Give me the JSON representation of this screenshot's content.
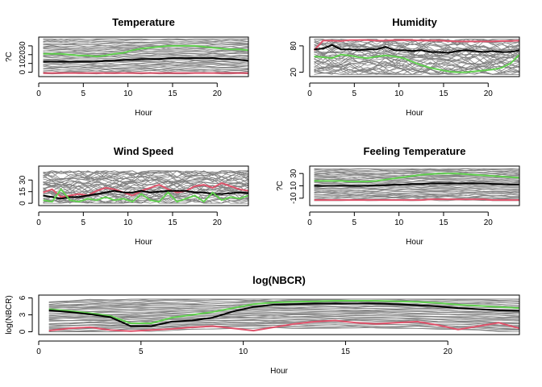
{
  "chart_data": [
    {
      "type": "line",
      "title": "Temperature",
      "xlabel": "Hour",
      "ylabel": "?C",
      "xlim": [
        0,
        23.5
      ],
      "ylim": [
        -5,
        40
      ],
      "xticks": [
        0,
        5,
        10,
        15,
        20
      ],
      "yticks": [
        0,
        10,
        20,
        30
      ],
      "grid": false,
      "background": {
        "count": 40,
        "color": "#808080",
        "low": -2,
        "high": 38
      },
      "series": [
        {
          "color": "#000000",
          "x": [
            0.5,
            1.5,
            2.5,
            3.5,
            4.5,
            5.5,
            6.5,
            7.5,
            8.5,
            9.5,
            10.5,
            11.5,
            12.5,
            13.5,
            14.5,
            15.5,
            16.5,
            17.5,
            18.5,
            19.5,
            20.5,
            21.5,
            22.5,
            23.5
          ],
          "values": [
            12,
            12,
            12,
            12,
            12,
            12,
            12,
            13,
            13,
            14,
            14,
            15,
            15,
            15,
            16,
            16,
            16,
            16,
            16,
            16,
            15,
            15,
            14,
            13
          ]
        },
        {
          "color": "#61D04F",
          "x": [
            0.5,
            1.5,
            2.5,
            3.5,
            4.5,
            5.5,
            6.5,
            7.5,
            8.5,
            9.5,
            10.5,
            11.5,
            12.5,
            13.5,
            14.5,
            15.5,
            16.5,
            17.5,
            18.5,
            19.5,
            20.5,
            21.5,
            22.5,
            23.5
          ],
          "values": [
            21,
            21,
            21,
            20,
            19,
            19,
            18,
            19,
            21,
            22,
            25,
            27,
            28,
            29,
            30,
            30,
            30,
            30,
            29,
            28,
            27,
            26,
            26,
            25
          ]
        },
        {
          "color": "#DF536B",
          "x": [
            0.5,
            1.5,
            2.5,
            3.5,
            4.5,
            5.5,
            6.5,
            7.5,
            8.5,
            9.5,
            10.5,
            11.5,
            12.5,
            13.5,
            14.5,
            15.5,
            16.5,
            17.5,
            18.5,
            19.5,
            20.5,
            21.5,
            22.5,
            23.5
          ],
          "values": [
            -1,
            -1,
            -1,
            -1,
            -1,
            -1,
            -1,
            -1,
            -1,
            -1,
            -1,
            -1,
            -1,
            -1,
            -1,
            -1,
            -1,
            -1,
            -1,
            -1,
            -1,
            -1,
            -1,
            -1
          ]
        }
      ]
    },
    {
      "type": "line",
      "title": "Humidity",
      "xlabel": "Hour",
      "ylabel": "",
      "xlim": [
        0,
        23.5
      ],
      "ylim": [
        10,
        100
      ],
      "xticks": [
        0,
        5,
        10,
        15,
        20
      ],
      "yticks": [
        20,
        80
      ],
      "grid": false,
      "background": {
        "count": 40,
        "color": "#808080",
        "low": 15,
        "high": 95
      },
      "series": [
        {
          "color": "#DF536B",
          "x": [
            0.5,
            1.5,
            2.5,
            3.5,
            4.5,
            5.5,
            6.5,
            7.5,
            8.5,
            9.5,
            10.5,
            11.5,
            12.5,
            13.5,
            14.5,
            15.5,
            16.5,
            17.5,
            18.5,
            19.5,
            20.5,
            21.5,
            22.5,
            23.5
          ],
          "values": [
            70,
            92,
            92,
            91,
            93,
            93,
            93,
            92,
            92,
            93,
            93,
            93,
            92,
            92,
            92,
            91,
            90,
            90,
            90,
            90,
            90,
            91,
            91,
            92
          ]
        },
        {
          "color": "#000000",
          "x": [
            0.5,
            1.5,
            2.5,
            3.5,
            4.5,
            5.5,
            6.5,
            7.5,
            8.5,
            9.5,
            10.5,
            11.5,
            12.5,
            13.5,
            14.5,
            15.5,
            16.5,
            17.5,
            18.5,
            19.5,
            20.5,
            21.5,
            22.5,
            23.5
          ],
          "values": [
            72,
            74,
            82,
            72,
            72,
            70,
            72,
            72,
            78,
            70,
            70,
            68,
            70,
            66,
            66,
            64,
            68,
            70,
            68,
            66,
            68,
            66,
            66,
            70
          ]
        },
        {
          "color": "#61D04F",
          "x": [
            0.5,
            1.5,
            2.5,
            3.5,
            4.5,
            5.5,
            6.5,
            7.5,
            8.5,
            9.5,
            10.5,
            11.5,
            12.5,
            13.5,
            14.5,
            15.5,
            16.5,
            17.5,
            18.5,
            19.5,
            20.5,
            21.5,
            22.5,
            23.5
          ],
          "values": [
            56,
            54,
            52,
            60,
            58,
            54,
            52,
            56,
            58,
            56,
            52,
            44,
            36,
            30,
            26,
            22,
            20,
            20,
            22,
            24,
            26,
            30,
            40,
            60
          ]
        }
      ]
    },
    {
      "type": "line",
      "title": "Wind Speed",
      "xlabel": "Hour",
      "ylabel": "",
      "xlim": [
        0,
        23.5
      ],
      "ylim": [
        -3,
        48
      ],
      "xticks": [
        0,
        5,
        10,
        15,
        20
      ],
      "yticks": [
        0,
        15,
        30
      ],
      "grid": false,
      "background": {
        "count": 40,
        "color": "#808080",
        "low": 0,
        "high": 42
      },
      "series": [
        {
          "color": "#DF536B",
          "x": [
            0.5,
            1.5,
            2.5,
            3.5,
            4.5,
            5.5,
            6.5,
            7.5,
            8.5,
            9.5,
            10.5,
            11.5,
            12.5,
            13.5,
            14.5,
            15.5,
            16.5,
            17.5,
            18.5,
            19.5,
            20.5,
            21.5,
            22.5,
            23.5
          ],
          "values": [
            14,
            18,
            8,
            10,
            12,
            10,
            16,
            20,
            18,
            14,
            10,
            16,
            20,
            24,
            18,
            14,
            16,
            22,
            24,
            20,
            26,
            22,
            18,
            16
          ]
        },
        {
          "color": "#000000",
          "x": [
            0.5,
            1.5,
            2.5,
            3.5,
            4.5,
            5.5,
            6.5,
            7.5,
            8.5,
            9.5,
            10.5,
            11.5,
            12.5,
            13.5,
            14.5,
            15.5,
            16.5,
            17.5,
            18.5,
            19.5,
            20.5,
            21.5,
            22.5,
            23.5
          ],
          "values": [
            10,
            8,
            6,
            8,
            8,
            10,
            12,
            14,
            16,
            14,
            14,
            16,
            14,
            15,
            16,
            16,
            16,
            14,
            14,
            12,
            12,
            13,
            14,
            13
          ]
        },
        {
          "color": "#61D04F",
          "x": [
            0.5,
            1.5,
            2.5,
            3.5,
            4.5,
            5.5,
            6.5,
            7.5,
            8.5,
            9.5,
            10.5,
            11.5,
            12.5,
            13.5,
            14.5,
            15.5,
            16.5,
            17.5,
            18.5,
            19.5,
            20.5,
            21.5,
            22.5,
            23.5
          ],
          "values": [
            4,
            2,
            18,
            4,
            2,
            6,
            4,
            8,
            4,
            6,
            2,
            12,
            4,
            2,
            14,
            2,
            6,
            10,
            2,
            14,
            4,
            8,
            6,
            10
          ]
        }
      ]
    },
    {
      "type": "line",
      "title": "Feeling Temperature",
      "xlabel": "Hour",
      "ylabel": "?C",
      "xlim": [
        0,
        23.5
      ],
      "ylim": [
        -22,
        42
      ],
      "xticks": [
        0,
        5,
        10,
        15,
        20
      ],
      "yticks": [
        -10,
        10,
        30
      ],
      "grid": false,
      "background": {
        "count": 40,
        "color": "#808080",
        "low": -14,
        "high": 38
      },
      "series": [
        {
          "color": "#61D04F",
          "x": [
            0.5,
            1.5,
            2.5,
            3.5,
            4.5,
            5.5,
            6.5,
            7.5,
            8.5,
            9.5,
            10.5,
            11.5,
            12.5,
            13.5,
            14.5,
            15.5,
            16.5,
            17.5,
            18.5,
            19.5,
            20.5,
            21.5,
            22.5,
            23.5
          ],
          "values": [
            18,
            18,
            18,
            18,
            17,
            17,
            17,
            18,
            20,
            22,
            24,
            26,
            28,
            29,
            30,
            30,
            30,
            29,
            28,
            27,
            26,
            25,
            24,
            23
          ]
        },
        {
          "color": "#000000",
          "x": [
            0.5,
            1.5,
            2.5,
            3.5,
            4.5,
            5.5,
            6.5,
            7.5,
            8.5,
            9.5,
            10.5,
            11.5,
            12.5,
            13.5,
            14.5,
            15.5,
            16.5,
            17.5,
            18.5,
            19.5,
            20.5,
            21.5,
            22.5,
            23.5
          ],
          "values": [
            10,
            10,
            10,
            10,
            10,
            10,
            10,
            11,
            11,
            12,
            12,
            13,
            13,
            14,
            14,
            14,
            14,
            14,
            14,
            14,
            13,
            13,
            12,
            12
          ]
        },
        {
          "color": "#DF536B",
          "x": [
            0.5,
            1.5,
            2.5,
            3.5,
            4.5,
            5.5,
            6.5,
            7.5,
            8.5,
            9.5,
            10.5,
            11.5,
            12.5,
            13.5,
            14.5,
            15.5,
            16.5,
            17.5,
            18.5,
            19.5,
            20.5,
            21.5,
            22.5,
            23.5
          ],
          "values": [
            -13,
            -13,
            -13,
            -13,
            -13,
            -13,
            -13,
            -13,
            -13,
            -13,
            -13,
            -13,
            -13,
            -12,
            -12,
            -12,
            -12,
            -12,
            -12,
            -12,
            -13,
            -13,
            -13,
            -13
          ]
        }
      ]
    },
    {
      "type": "line",
      "title": "log(NBCR)",
      "xlabel": "Hour",
      "ylabel": "log(NBCR)",
      "xlim": [
        0,
        23.5
      ],
      "ylim": [
        -0.5,
        6.5
      ],
      "xticks": [
        0,
        5,
        10,
        15,
        20
      ],
      "yticks": [
        0,
        3,
        6
      ],
      "grid": false,
      "background": {
        "count": 40,
        "color": "#808080",
        "low": 0,
        "high": 5.8
      },
      "series": [
        {
          "color": "#61D04F",
          "x": [
            0.5,
            1.5,
            2.5,
            3.5,
            4.5,
            5.5,
            6.5,
            7.5,
            8.5,
            9.5,
            10.5,
            11.5,
            12.5,
            13.5,
            14.5,
            15.5,
            16.5,
            17.5,
            18.5,
            19.5,
            20.5,
            21.5,
            22.5,
            23.5
          ],
          "values": [
            4.0,
            3.7,
            3.3,
            2.8,
            1.5,
            1.5,
            2.5,
            3.0,
            3.5,
            4.2,
            4.9,
            5.2,
            5.3,
            5.4,
            5.5,
            5.5,
            5.5,
            5.4,
            5.3,
            5.1,
            4.8,
            4.6,
            4.4,
            4.2
          ]
        },
        {
          "color": "#000000",
          "x": [
            0.5,
            1.5,
            2.5,
            3.5,
            4.5,
            5.5,
            6.5,
            7.5,
            8.5,
            9.5,
            10.5,
            11.5,
            12.5,
            13.5,
            14.5,
            15.5,
            16.5,
            17.5,
            18.5,
            19.5,
            20.5,
            21.5,
            22.5,
            23.5
          ],
          "values": [
            3.8,
            3.5,
            3.1,
            2.6,
            1.0,
            1.0,
            1.8,
            2.0,
            2.5,
            3.6,
            4.4,
            4.8,
            4.9,
            5.0,
            5.0,
            5.0,
            5.0,
            4.9,
            4.7,
            4.5,
            4.2,
            4.0,
            3.8,
            3.7
          ]
        },
        {
          "color": "#DF536B",
          "x": [
            0.5,
            1.5,
            2.5,
            3.5,
            4.5,
            5.5,
            6.5,
            7.5,
            8.5,
            9.5,
            10.5,
            11.5,
            12.5,
            13.5,
            14.5,
            15.5,
            16.5,
            17.5,
            18.5,
            19.5,
            20.5,
            21.5,
            22.5,
            23.5
          ],
          "values": [
            0.2,
            0.6,
            0.8,
            0.3,
            0.1,
            0.3,
            0.5,
            0.8,
            1.0,
            0.6,
            0.2,
            0.8,
            1.4,
            1.8,
            2.0,
            1.6,
            1.4,
            1.6,
            1.8,
            1.2,
            0.4,
            1.0,
            1.6,
            0.6
          ]
        }
      ]
    }
  ]
}
